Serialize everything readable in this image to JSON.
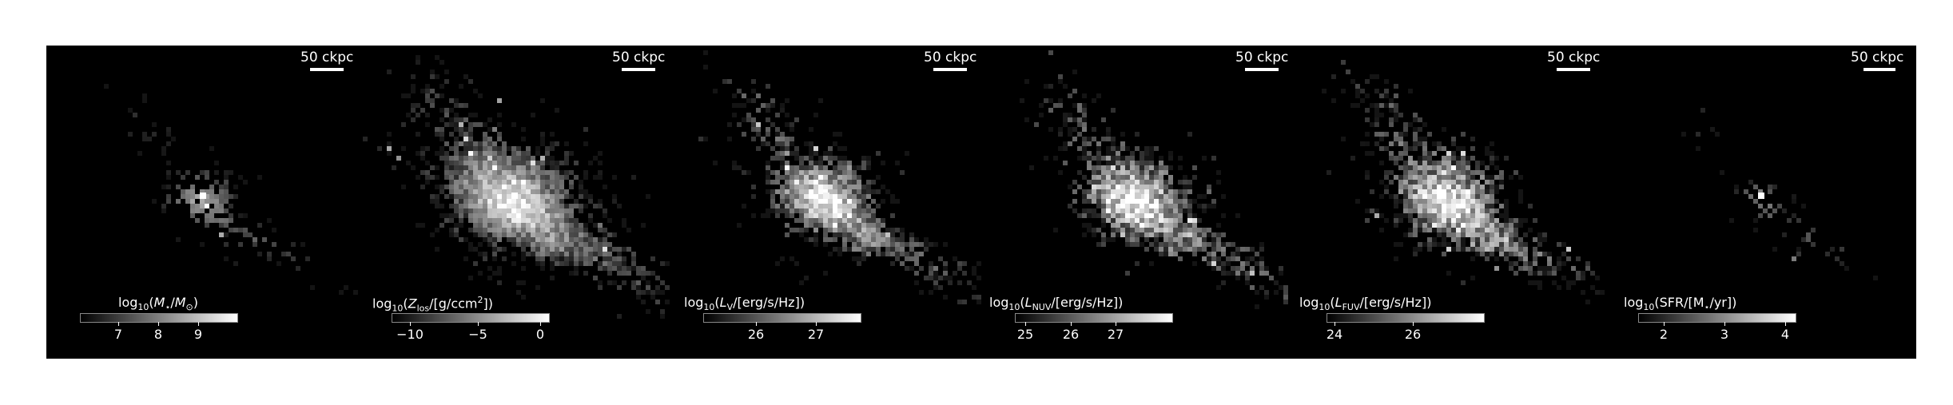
{
  "figure": {
    "panels": [
      {
        "scalebar": "50 ckpc",
        "colorbar": {
          "title_html": "log<sub>10</sub>(<i>M</i><sub>&#8902;</sub>/<i>M</i><sub>&#8857;</sub>)",
          "ticks": [
            "7",
            "8",
            "9"
          ]
        }
      },
      {
        "scalebar": "50 ckpc",
        "colorbar": {
          "title_html": "log<sub>10</sub>(<i>Z</i><sub>los</sub>/[g/ccm<sup>2</sup>])",
          "ticks": [
            "−10",
            "−5",
            "0"
          ]
        }
      },
      {
        "scalebar": "50 ckpc",
        "colorbar": {
          "title_html": "log<sub>10</sub>(<i>L</i><sub>V</sub>/[erg/s/Hz])",
          "ticks": [
            "26",
            "27"
          ]
        }
      },
      {
        "scalebar": "50 ckpc",
        "colorbar": {
          "title_html": "log<sub>10</sub>(<i>L</i><sub>NUV</sub>/[erg/s/Hz])",
          "ticks": [
            "25",
            "26",
            "27"
          ]
        }
      },
      {
        "scalebar": "50 ckpc",
        "colorbar": {
          "title_html": "log<sub>10</sub>(<i>L</i><sub>FUV</sub>/[erg/s/Hz])",
          "ticks": [
            "24",
            "26"
          ]
        }
      },
      {
        "scalebar": "50 ckpc",
        "colorbar": {
          "title_html": "log<sub>10</sub>(SFR/[M<sub>&#8902;</sub>/yr])",
          "ticks": [
            "2",
            "3",
            "4"
          ]
        }
      }
    ]
  }
}
